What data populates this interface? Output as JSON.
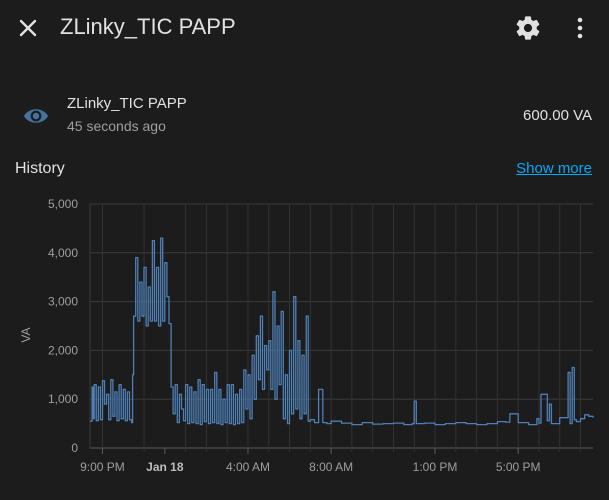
{
  "header": {
    "title": "ZLinky_TIC PAPP"
  },
  "entity": {
    "name": "ZLinky_TIC PAPP",
    "last_changed": "45 seconds ago",
    "state": "600.00 VA"
  },
  "history": {
    "title": "History",
    "show_more": "Show more"
  },
  "colors": {
    "background": "#1c1c1c",
    "line": "#4e7fb5",
    "accent": "#03a9f4",
    "icon": "#44739e"
  },
  "icons": {
    "close": "close-icon",
    "settings": "gear-icon",
    "menu": "dots-vertical-icon",
    "entity": "eye-icon"
  },
  "chart_data": {
    "type": "line",
    "ylabel": "VA",
    "ylim": [
      0,
      5000
    ],
    "yticks": [
      0,
      1000,
      2000,
      3000,
      4000,
      5000
    ],
    "ytick_labels": [
      "0",
      "1,000",
      "2,000",
      "3,000",
      "4,000",
      "5,000"
    ],
    "x_range_hours": [
      -3.6,
      20.6
    ],
    "xticks": [
      {
        "h": -3,
        "label": "9:00 PM"
      },
      {
        "h": 0,
        "label": "Jan 18",
        "bold": true
      },
      {
        "h": 4,
        "label": "4:00 AM"
      },
      {
        "h": 8,
        "label": "8:00 AM"
      },
      {
        "h": 13,
        "label": "1:00 PM"
      },
      {
        "h": 17,
        "label": "5:00 PM"
      }
    ],
    "gridlines_hours": [
      -3,
      -1,
      1,
      2,
      3,
      4,
      5,
      6,
      7,
      8,
      9,
      10,
      11,
      12,
      13,
      14,
      15,
      16,
      17,
      18,
      19,
      20
    ],
    "grid": true,
    "series": [
      {
        "x": [
          -3.6,
          -3.5,
          -3.45,
          -3.4,
          -3.3,
          -3.2,
          -3.1,
          -3.0,
          -2.9,
          -2.8,
          -2.7,
          -2.6,
          -2.5,
          -2.4,
          -2.3,
          -2.2,
          -2.1,
          -2.0,
          -1.9,
          -1.8,
          -1.7,
          -1.6,
          -1.55,
          -1.5,
          -1.4,
          -1.3,
          -1.2,
          -1.1,
          -1.0,
          -0.9,
          -0.8,
          -0.7,
          -0.6,
          -0.5,
          -0.4,
          -0.3,
          -0.2,
          -0.1,
          0.0,
          0.1,
          0.2,
          0.3,
          0.4,
          0.5,
          0.6,
          0.7,
          0.8,
          0.9,
          1.0,
          1.1,
          1.2,
          1.3,
          1.4,
          1.5,
          1.6,
          1.7,
          1.8,
          1.9,
          2.0,
          2.1,
          2.2,
          2.3,
          2.4,
          2.5,
          2.6,
          2.7,
          2.8,
          2.9,
          3.0,
          3.1,
          3.2,
          3.3,
          3.4,
          3.5,
          3.6,
          3.7,
          3.8,
          3.9,
          4.0,
          4.1,
          4.2,
          4.3,
          4.4,
          4.5,
          4.6,
          4.7,
          4.8,
          4.9,
          5.0,
          5.1,
          5.2,
          5.3,
          5.4,
          5.5,
          5.6,
          5.7,
          5.8,
          5.9,
          6.0,
          6.1,
          6.2,
          6.3,
          6.4,
          6.5,
          6.6,
          6.7,
          6.8,
          6.9,
          7.0,
          7.2,
          7.4,
          7.6,
          7.8,
          8.0,
          8.5,
          9.0,
          9.5,
          10.0,
          10.5,
          11.0,
          11.5,
          11.9,
          12.0,
          12.1,
          12.5,
          13.0,
          13.5,
          14.0,
          14.5,
          15.0,
          15.5,
          16.0,
          16.4,
          16.6,
          17.0,
          17.5,
          17.9,
          18.0,
          18.1,
          18.4,
          18.5,
          18.6,
          19.0,
          19.4,
          19.5,
          19.6,
          19.7,
          19.8,
          20.0,
          20.2,
          20.4,
          20.6
        ],
        "y": [
          550,
          1250,
          600,
          1300,
          560,
          1250,
          580,
          1380,
          900,
          1100,
          580,
          1400,
          650,
          1150,
          560,
          1300,
          600,
          1200,
          560,
          1150,
          580,
          520,
          1500,
          2700,
          3900,
          2600,
          3400,
          2700,
          3700,
          2500,
          3300,
          2600,
          4250,
          2600,
          3700,
          2500,
          4300,
          2600,
          3800,
          3100,
          2550,
          1250,
          700,
          1300,
          520,
          1100,
          800,
          560,
          1300,
          500,
          1250,
          520,
          1150,
          500,
          1400,
          480,
          1300,
          540,
          1200,
          500,
          1200,
          520,
          1550,
          500,
          1200,
          480,
          1000,
          520,
          1300,
          500,
          1300,
          480,
          1100,
          500,
          1200,
          520,
          1600,
          800,
          1500,
          600,
          1900,
          1000,
          2300,
          1400,
          2700,
          1200,
          2100,
          1600,
          2200,
          1200,
          3200,
          1000,
          2500,
          1300,
          2800,
          600,
          1500,
          500,
          2000,
          700,
          3100,
          800,
          2200,
          600,
          1900,
          700,
          2700,
          550,
          580,
          520,
          1200,
          520,
          500,
          550,
          510,
          480,
          520,
          490,
          500,
          510,
          480,
          500,
          960,
          500,
          510,
          480,
          500,
          520,
          500,
          480,
          500,
          540,
          530,
          700,
          520,
          480,
          600,
          510,
          1100,
          560,
          900,
          500,
          620,
          1550,
          500,
          1650,
          580,
          540,
          600,
          680,
          650,
          620
        ]
      }
    ]
  }
}
